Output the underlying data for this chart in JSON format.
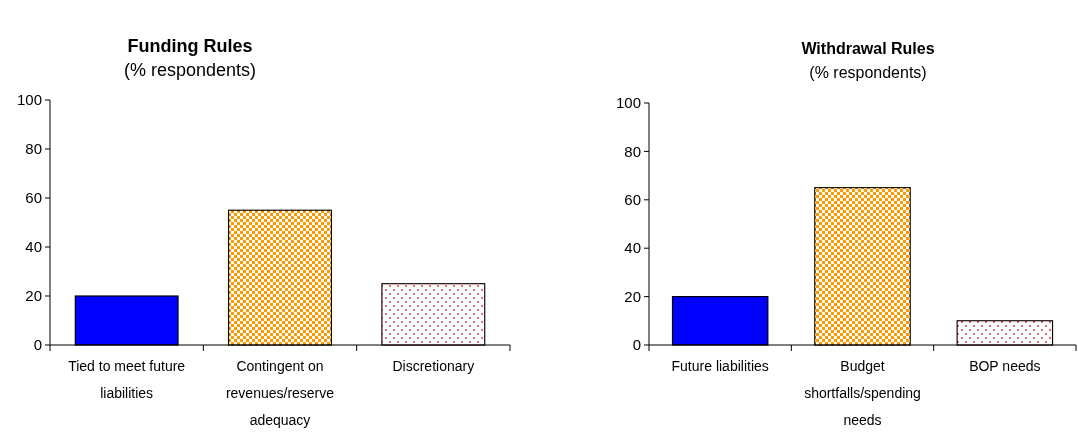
{
  "chart_data": [
    {
      "type": "bar",
      "title": "Funding Rules",
      "subtitle": "(% respondents)",
      "categories": [
        "Tied to meet future liabilities",
        "Contingent on revenues/reserve adequacy",
        "Discretionary"
      ],
      "values": [
        20,
        55,
        25
      ],
      "colors": [
        "#0000ff",
        "#ff9900",
        "#cc3333"
      ],
      "ylim": [
        0,
        100
      ],
      "yticks": [
        0,
        20,
        40,
        60,
        80,
        100
      ]
    },
    {
      "type": "bar",
      "title": "Withdrawal Rules",
      "subtitle": "(% respondents)",
      "categories": [
        "Future liabilities",
        "Budget shortfalls/spending needs",
        "BOP needs"
      ],
      "values": [
        20,
        65,
        10
      ],
      "colors": [
        "#0000ff",
        "#ff9900",
        "#cc3333"
      ],
      "ylim": [
        0,
        100
      ],
      "yticks": [
        0,
        20,
        40,
        60,
        80,
        100
      ]
    }
  ]
}
